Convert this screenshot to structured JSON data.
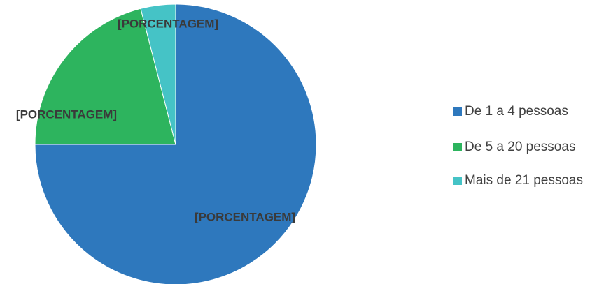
{
  "chart_data": {
    "type": "pie",
    "categories": [
      "De 1 a 4 pessoas",
      "De 5 a 20 pessoas",
      "Mais de 21 pessoas"
    ],
    "values": [
      75,
      21,
      4
    ],
    "value_labels": [
      "[PORCENTAGEM]",
      "[PORCENTAGEM]",
      "[PORCENTAGEM]"
    ],
    "colors": [
      "#2e78bd",
      "#2db45e",
      "#45c3c6"
    ],
    "legend": "right"
  }
}
